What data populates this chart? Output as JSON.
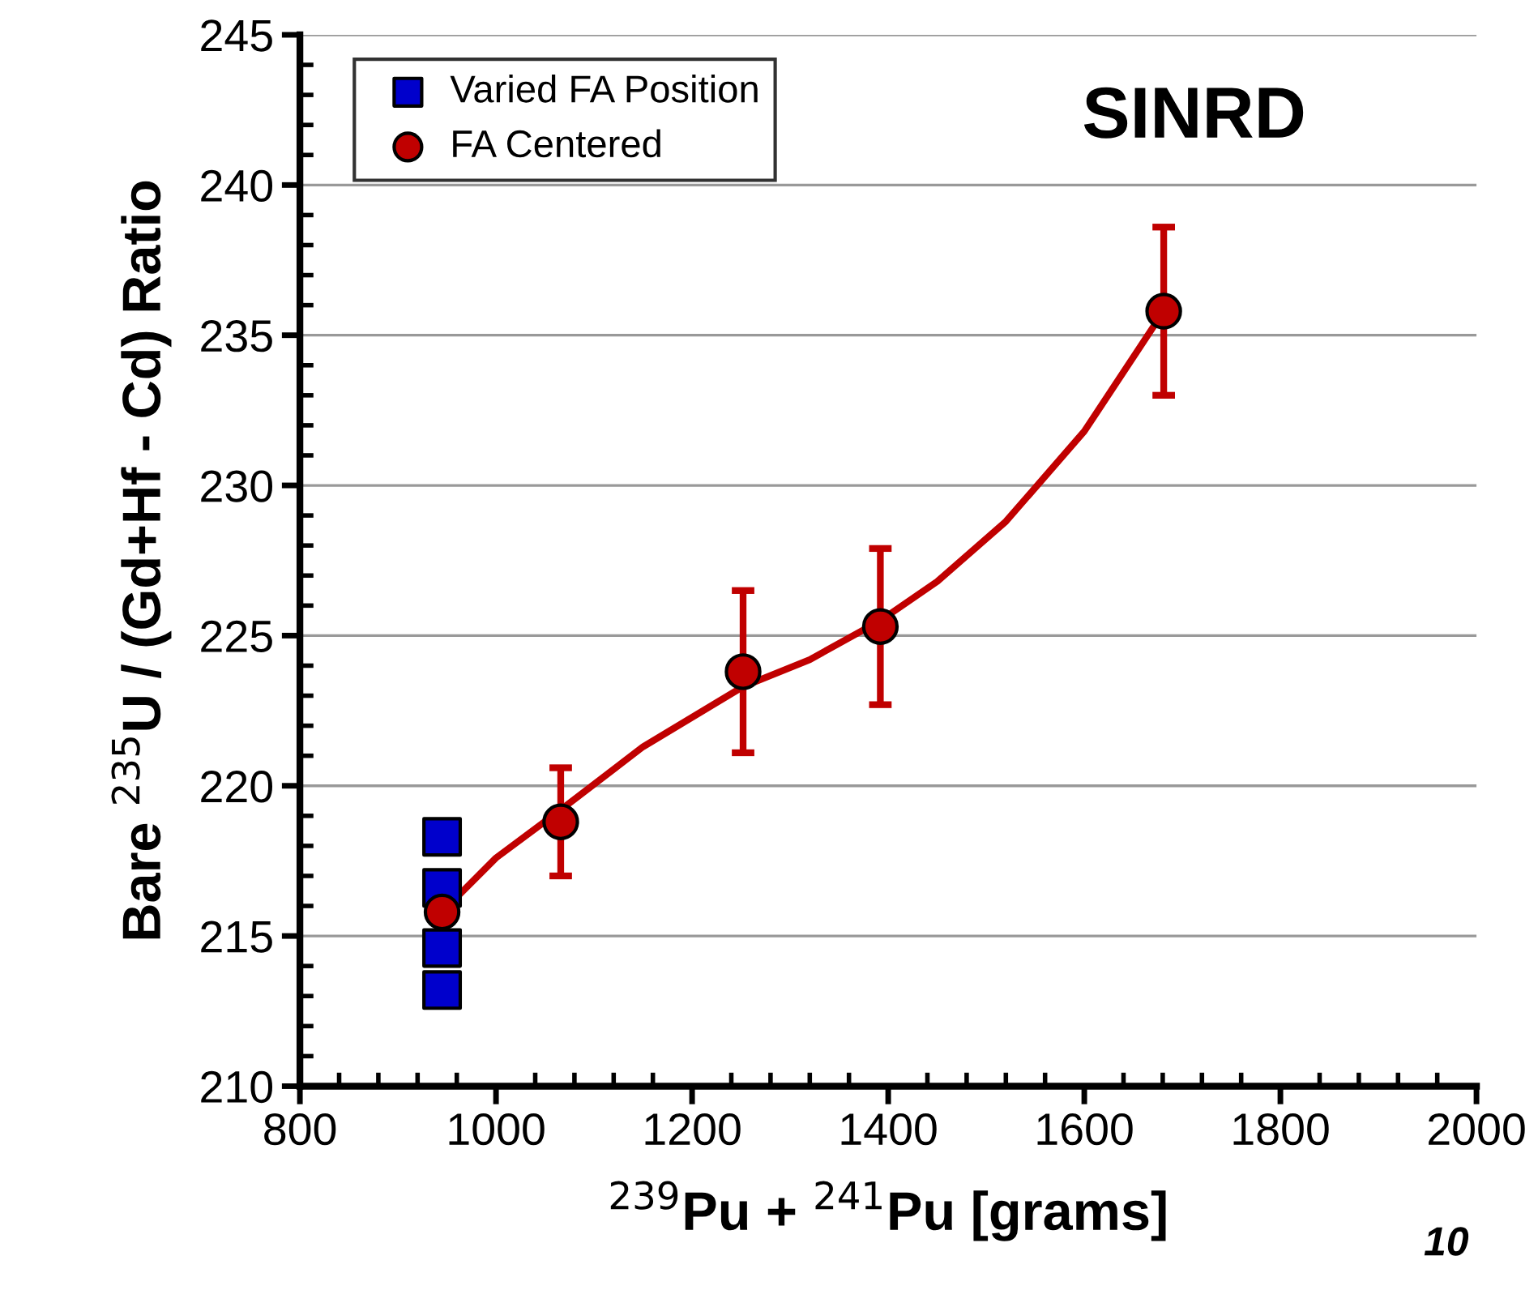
{
  "chart_data": {
    "type": "scatter",
    "xlabel": "$^{239}$Pu + $^{241}$Pu [grams]",
    "ylabel": "Bare $^{235}$U / (Gd+Hf - Cd) Ratio",
    "xlim": [
      800,
      2000
    ],
    "xticks": [
      800,
      1000,
      1200,
      1400,
      1600,
      1800,
      2000
    ],
    "ylim": [
      210,
      245
    ],
    "yticks": [
      210,
      215,
      220,
      225,
      230,
      235,
      240,
      245
    ],
    "grid": "y",
    "legend": "top left",
    "annotations": [
      "SINRD",
      "10"
    ],
    "series": [
      {
        "name": "Varied FA Position",
        "marker": "square",
        "color": "#0000cc",
        "x": [
          945,
          945,
          945,
          945
        ],
        "values": [
          218.3,
          216.6,
          214.6,
          213.2
        ]
      },
      {
        "name": "FA Centered",
        "marker": "circle",
        "color": "#c00000",
        "x": [
          945,
          1066,
          1252,
          1392,
          1681
        ],
        "values": [
          215.8,
          218.8,
          223.8,
          225.3,
          235.8
        ],
        "errors": [
          null,
          1.8,
          2.7,
          2.6,
          2.8
        ]
      },
      {
        "type": "line",
        "marker": "none",
        "color": "#c00000",
        "x": [
          945,
          1000,
          1066,
          1150,
          1252,
          1320,
          1392,
          1450,
          1520,
          1600,
          1681
        ],
        "values": [
          215.8,
          217.6,
          219.2,
          221.3,
          223.3,
          224.2,
          225.5,
          226.8,
          228.8,
          231.8,
          235.8
        ]
      }
    ]
  }
}
